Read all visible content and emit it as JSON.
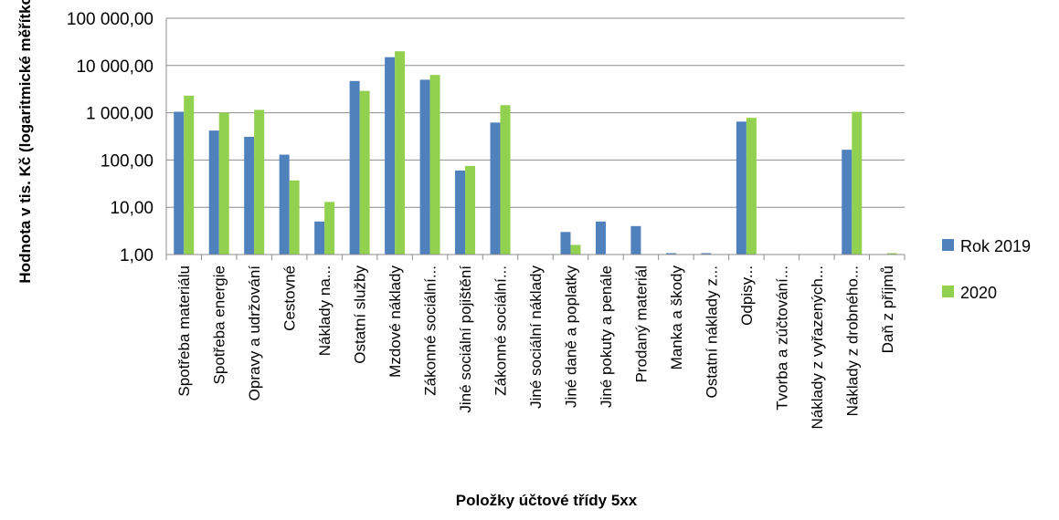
{
  "chart_data": {
    "type": "bar",
    "title": "",
    "xlabel": "Položky účtové třídy 5xx",
    "ylabel": "Hodnota v tis. Kč  (logaritmické měřítko)",
    "y_scale": "log",
    "ylim": [
      1,
      100000
    ],
    "y_ticks": [
      1,
      10,
      100,
      1000,
      10000,
      100000
    ],
    "y_tick_labels": [
      "1,00",
      "10,00",
      "100,00",
      "1 000,00",
      "10 000,00",
      "100 000,00"
    ],
    "grid": "horizontal",
    "legend_position": "right",
    "categories": [
      "Spotřeba materiálu",
      "Spotřeba energie",
      "Opravy a udržování",
      "Cestovné",
      "Náklady na...",
      "Ostatní služby",
      "Mzdové náklady",
      "Zákonné sociální...",
      "Jiné sociální pojištění",
      "Zákonné sociální...",
      "Jiné sociální náklady",
      "Jiné daně a poplatky",
      "Jiné pokuty a penále",
      "Prodaný materiál",
      "Manka a škody",
      "Ostatní náklady z...",
      "Odpisy...",
      "Tvorba a zúčtování...",
      "Náklady z vyřazených...",
      "Náklady z drobného...",
      "Daň z příjmů"
    ],
    "series": [
      {
        "name": "Rok 2019",
        "color": "#4f81bd",
        "values": [
          1050,
          420,
          310,
          130,
          5,
          4700,
          15000,
          5000,
          60,
          620,
          0,
          3,
          5,
          4,
          1.0,
          1.0,
          650,
          0,
          0,
          165,
          0
        ]
      },
      {
        "name": "2020",
        "color": "#92d050",
        "values": [
          2300,
          1000,
          1150,
          37,
          13,
          2900,
          20000,
          6300,
          75,
          1450,
          0,
          1.6,
          0,
          0,
          0,
          0,
          780,
          0,
          0,
          1050,
          1.0
        ]
      }
    ]
  }
}
